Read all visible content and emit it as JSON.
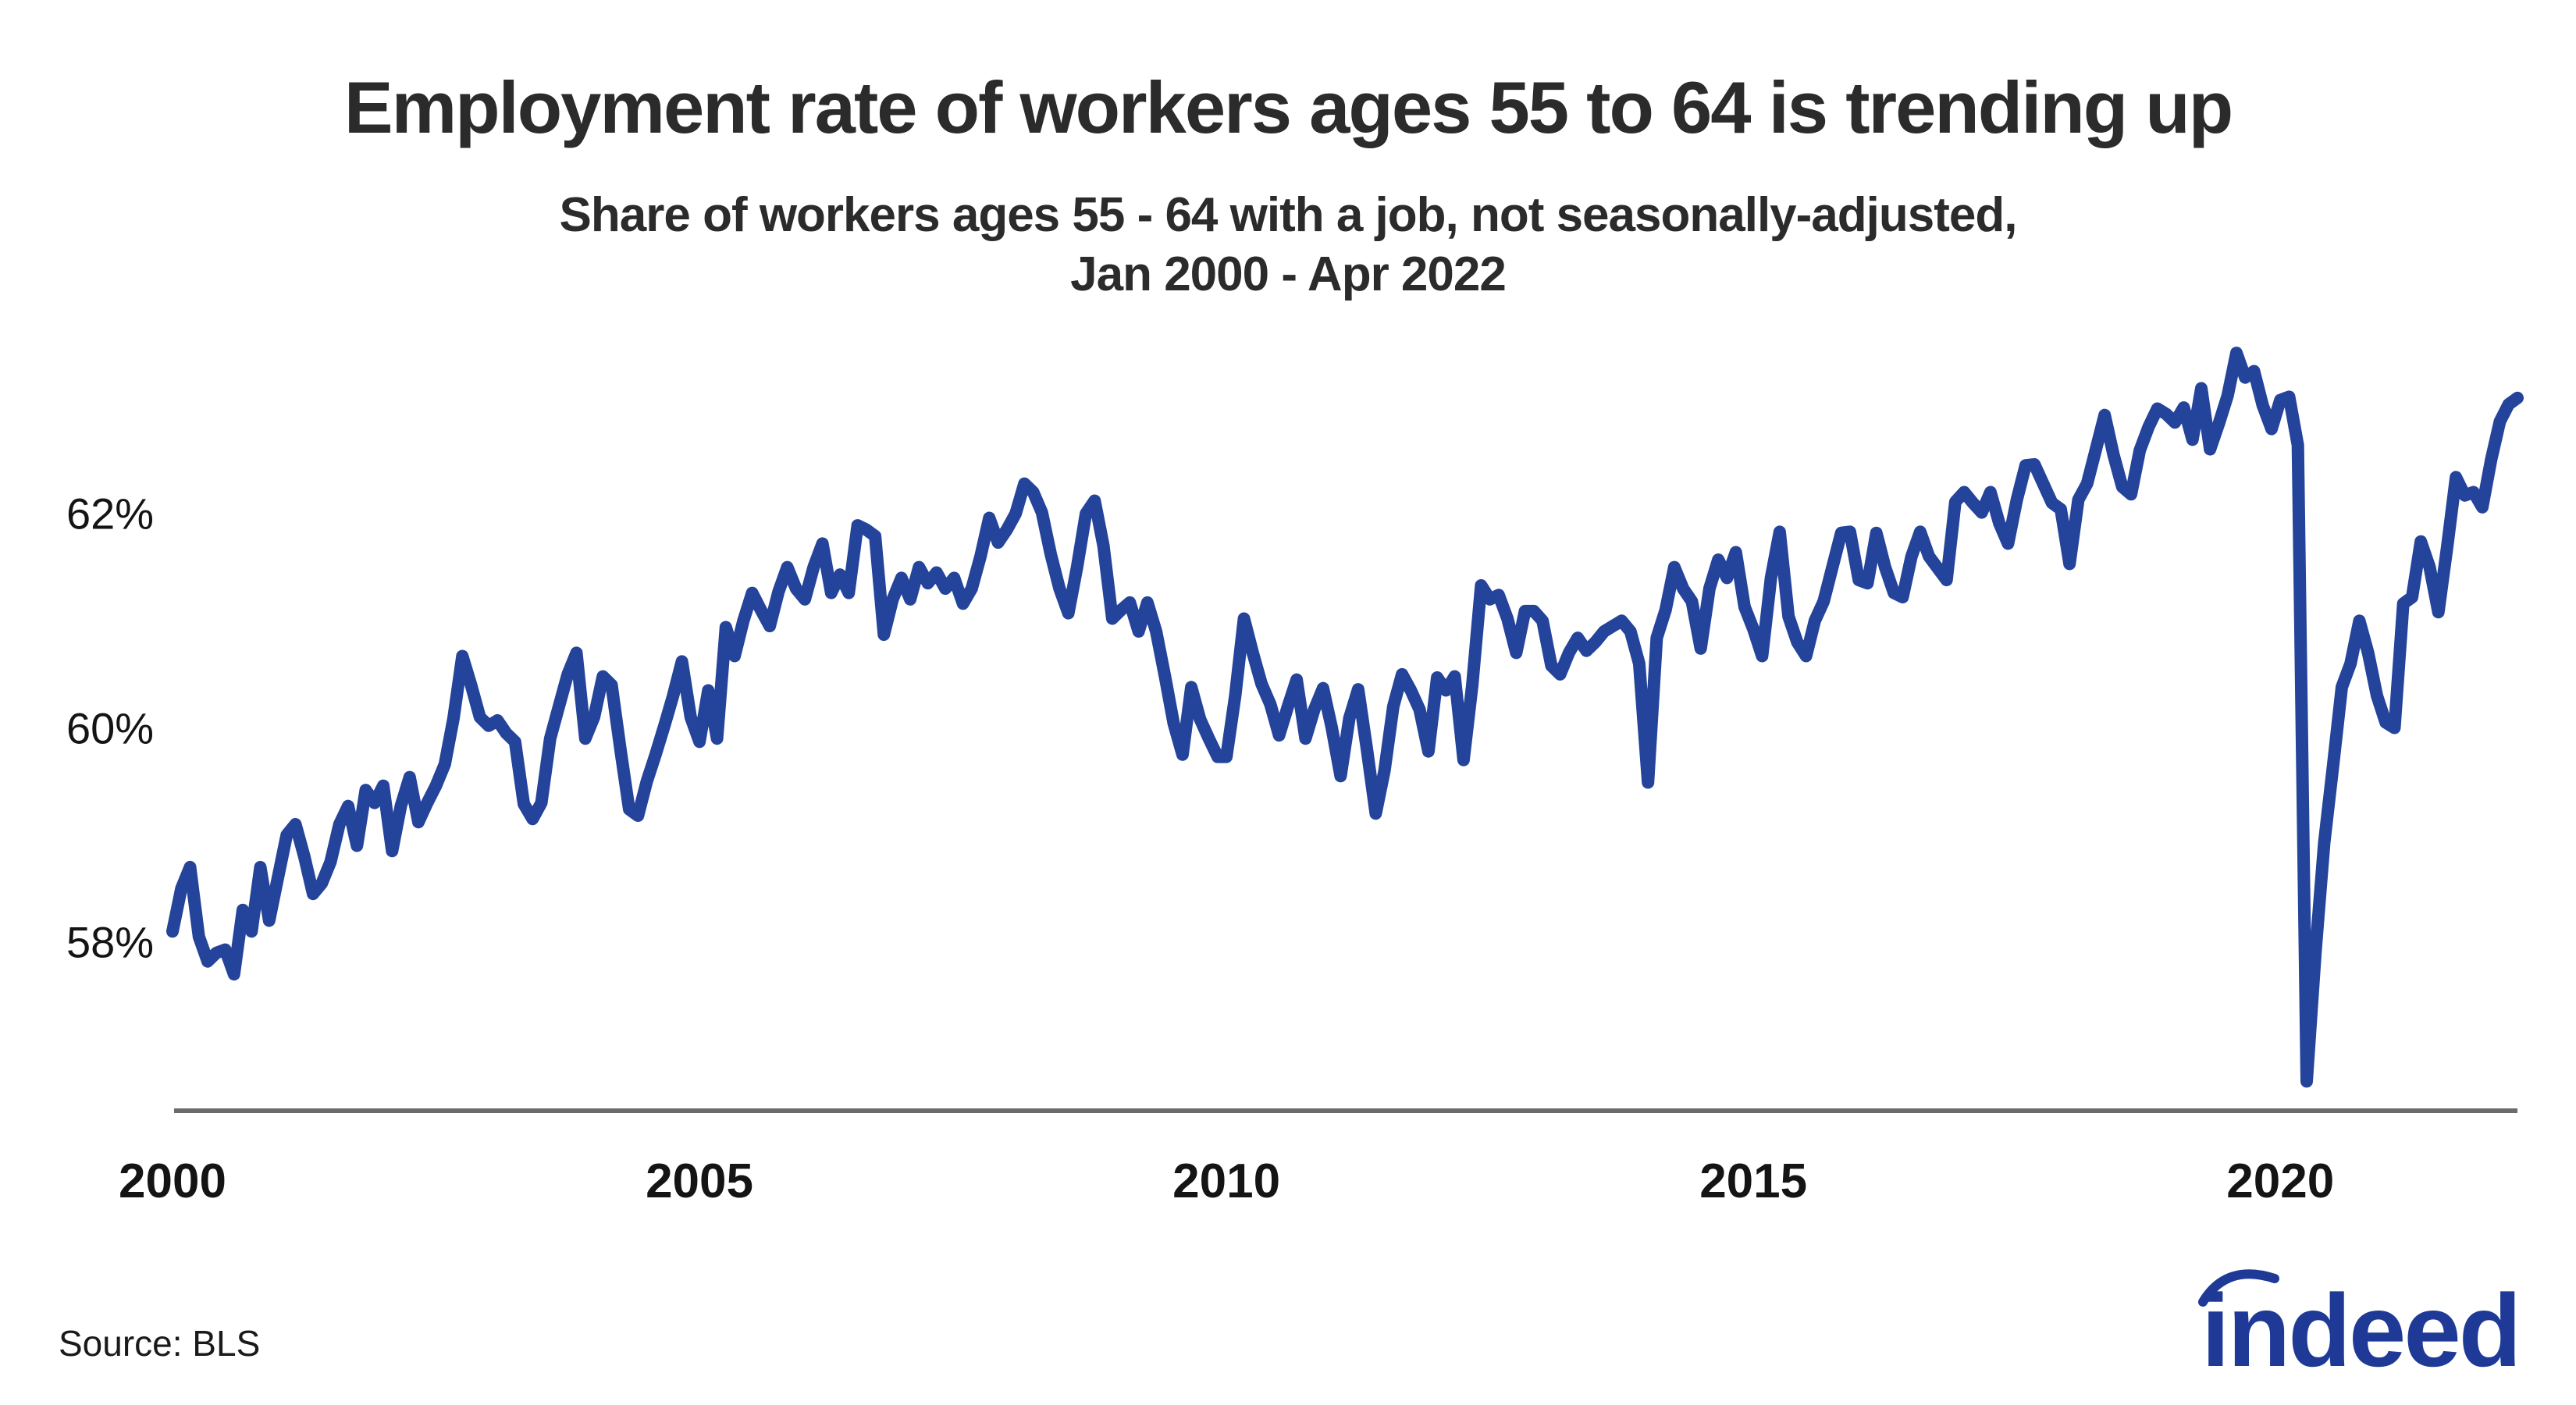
{
  "header": {
    "title": "Employment rate of workers ages 55 to 64 is trending up",
    "subtitle_line1": "Share of workers ages 55 - 64 with a job, not seasonally-adjusted,",
    "subtitle_line2": "Jan 2000 - Apr 2022"
  },
  "footer": {
    "source_text": "Source: BLS",
    "logo_text": "indeed"
  },
  "colors": {
    "line": "#24439a",
    "logo": "#1e3a96",
    "axis": "#6b6b6b",
    "text": "#1a1a1a"
  },
  "chart_data": {
    "type": "line",
    "title": "Employment rate of workers ages 55 to 64 is trending up",
    "subtitle": "Share of workers ages 55 - 64 with a job, not seasonally-adjusted, Jan 2000 - Apr 2022",
    "xlabel": "",
    "ylabel": "",
    "grid": false,
    "legend": "none",
    "x_start": "2000-01",
    "x_end": "2022-04",
    "frequency": "monthly",
    "x_tick_labels": [
      "2000",
      "2005",
      "2010",
      "2015",
      "2020"
    ],
    "x_tick_years": [
      2000,
      2005,
      2010,
      2015,
      2020
    ],
    "y_tick_labels": [
      "58%",
      "60%",
      "62%"
    ],
    "y_ticks": [
      58,
      60,
      62
    ],
    "ylim": [
      56.4,
      63.8
    ],
    "series": [
      {
        "name": "Employment rate, ages 55-64, not seasonally adjusted",
        "values": [
          58.1,
          58.5,
          58.7,
          58.05,
          57.82,
          57.9,
          57.93,
          57.7,
          58.3,
          58.1,
          58.7,
          58.2,
          58.6,
          59.0,
          59.1,
          58.8,
          58.45,
          58.55,
          58.75,
          59.1,
          59.27,
          58.9,
          59.42,
          59.3,
          59.46,
          58.85,
          59.27,
          59.54,
          59.12,
          59.3,
          59.46,
          59.66,
          60.09,
          60.67,
          60.4,
          60.1,
          60.02,
          60.07,
          59.95,
          59.87,
          59.29,
          59.15,
          59.3,
          59.9,
          60.2,
          60.5,
          60.7,
          59.9,
          60.1,
          60.48,
          60.4,
          59.8,
          59.24,
          59.18,
          59.5,
          59.75,
          60.02,
          60.3,
          60.62,
          60.1,
          59.87,
          60.35,
          59.9,
          60.94,
          60.67,
          61.0,
          61.26,
          61.1,
          60.95,
          61.27,
          61.5,
          61.3,
          61.2,
          61.5,
          61.72,
          61.26,
          61.43,
          61.26,
          61.89,
          61.85,
          61.79,
          60.87,
          61.2,
          61.4,
          61.2,
          61.5,
          61.35,
          61.45,
          61.3,
          61.4,
          61.16,
          61.3,
          61.6,
          61.96,
          61.73,
          61.85,
          62.0,
          62.28,
          62.2,
          62.01,
          61.62,
          61.3,
          61.07,
          61.5,
          62.0,
          62.12,
          61.7,
          61.02,
          61.1,
          61.17,
          60.9,
          61.17,
          60.9,
          60.48,
          60.04,
          59.75,
          60.38,
          60.08,
          59.9,
          59.73,
          59.73,
          60.3,
          61.02,
          60.7,
          60.41,
          60.22,
          59.93,
          60.2,
          60.45,
          59.9,
          60.17,
          60.37,
          60.0,
          59.55,
          60.09,
          60.36,
          59.8,
          59.2,
          59.6,
          60.2,
          60.5,
          60.35,
          60.17,
          59.78,
          60.47,
          60.35,
          60.48,
          59.7,
          60.4,
          61.33,
          61.2,
          61.24,
          61.02,
          60.7,
          61.09,
          61.09,
          61.0,
          60.58,
          60.5,
          60.7,
          60.84,
          60.72,
          60.8,
          60.9,
          60.95,
          61.0,
          60.9,
          60.6,
          59.49,
          60.84,
          61.1,
          61.5,
          61.3,
          61.18,
          60.74,
          61.3,
          61.57,
          61.4,
          61.64,
          61.13,
          60.92,
          60.67,
          61.4,
          61.83,
          61.04,
          60.8,
          60.67,
          61.0,
          61.18,
          61.5,
          61.82,
          61.83,
          61.38,
          61.35,
          61.82,
          61.5,
          61.26,
          61.22,
          61.6,
          61.83,
          61.6,
          61.49,
          61.38,
          62.11,
          62.2,
          62.1,
          62.01,
          62.2,
          61.91,
          61.72,
          62.13,
          62.45,
          62.46,
          62.28,
          62.1,
          62.04,
          61.53,
          62.13,
          62.28,
          62.6,
          62.92,
          62.55,
          62.25,
          62.18,
          62.59,
          62.81,
          62.98,
          62.93,
          62.85,
          62.99,
          62.69,
          63.17,
          62.6,
          62.84,
          63.1,
          63.5,
          63.27,
          63.33,
          63.01,
          62.79,
          63.06,
          63.09,
          62.64,
          56.7,
          57.9,
          58.93,
          59.64,
          60.38,
          60.6,
          61.0,
          60.7,
          60.3,
          60.05,
          60.0,
          61.16,
          61.22,
          61.74,
          61.5,
          61.08,
          61.69,
          62.34,
          62.17,
          62.2,
          62.06,
          62.5,
          62.86,
          63.02,
          63.08
        ]
      }
    ]
  }
}
